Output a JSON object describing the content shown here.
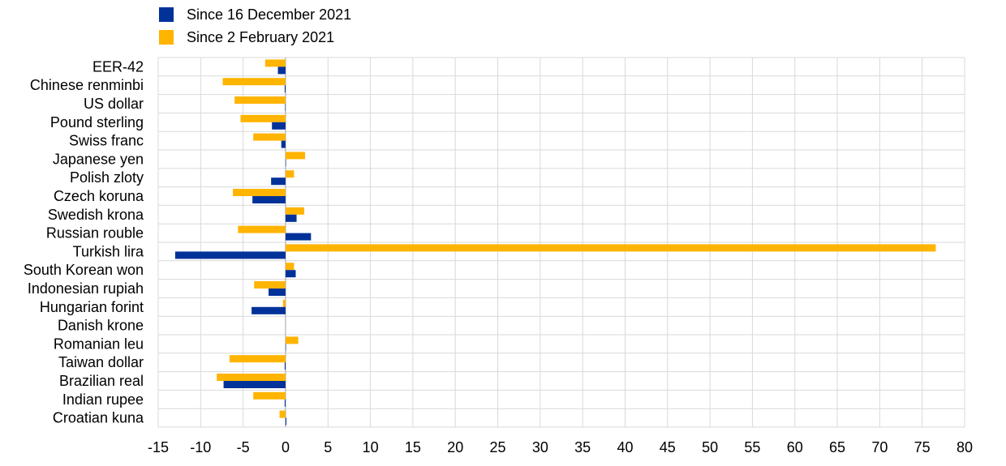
{
  "chart_data": {
    "type": "bar",
    "orientation": "horizontal",
    "title": "",
    "xlabel": "",
    "ylabel": "",
    "xlim": [
      -15,
      80
    ],
    "xticks": [
      -15,
      -10,
      -5,
      0,
      5,
      10,
      15,
      20,
      25,
      30,
      35,
      40,
      45,
      50,
      55,
      60,
      65,
      70,
      75,
      80
    ],
    "grid": true,
    "legend_position": "top-left",
    "categories": [
      "EER-42",
      "Chinese renminbi",
      "US dollar",
      "Pound sterling",
      "Swiss franc",
      "Japanese yen",
      "Polish zloty",
      "Czech koruna",
      "Swedish krona",
      "Russian rouble",
      "Turkish lira",
      "South Korean won",
      "Indonesian rupiah",
      "Hungarian forint",
      "Danish krone",
      "Romanian leu",
      "Taiwan dollar",
      "Brazilian real",
      "Indian rupee",
      "Croatian kuna"
    ],
    "series": [
      {
        "name": "Since 16 December 2021",
        "color": "#003299",
        "values": [
          -0.9,
          -0.1,
          -0.05,
          -1.6,
          -0.5,
          0.05,
          -1.7,
          -3.9,
          1.3,
          3.0,
          -13.0,
          1.2,
          -2.0,
          -4.0,
          0.0,
          0.05,
          -0.1,
          -7.3,
          -0.1,
          0.1
        ]
      },
      {
        "name": "Since 2 February 2021",
        "color": "#FFB400",
        "values": [
          -2.4,
          -7.4,
          -6.0,
          -5.3,
          -3.8,
          2.3,
          1.0,
          -6.2,
          2.2,
          -5.6,
          76.6,
          1.0,
          -3.7,
          -0.3,
          0.0,
          1.5,
          -6.6,
          -8.1,
          -3.8,
          -0.7
        ]
      }
    ]
  }
}
